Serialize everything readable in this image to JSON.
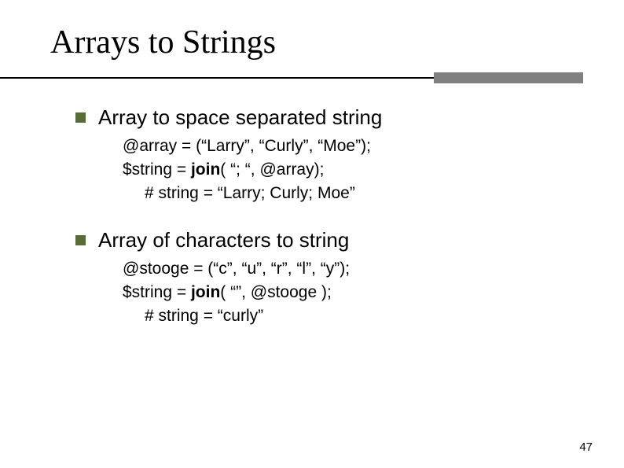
{
  "slide": {
    "title": "Arrays to Strings",
    "page_number": "47",
    "bullets": [
      {
        "heading": "Array to space separated string",
        "lines": [
          {
            "text": "@array = (“Larry”, “Curly”, “Moe”);",
            "bold_word": "",
            "indent": false
          },
          {
            "prefix": "$string = ",
            "bold_word": "join",
            "suffix": "( “; “, @array);",
            "indent": false
          },
          {
            "text": "# string  = “Larry; Curly; Moe”",
            "indent": true
          }
        ]
      },
      {
        "heading": "Array of characters to string",
        "lines": [
          {
            "text": "@stooge = (“c”, “u”, “r”, “l”, “y”);",
            "indent": false
          },
          {
            "prefix": "$string = ",
            "bold_word": "join",
            "suffix": "( “”, @stooge );",
            "indent": false
          },
          {
            "text": "# string = “curly”",
            "indent": true
          }
        ]
      }
    ]
  },
  "style": {
    "bullet_marker_color": "#5a6b3a",
    "hr_block_color": "#808080",
    "title_fontsize": 42,
    "bullet_fontsize": 26,
    "code_fontsize": 21,
    "pagenum_fontsize": 15
  }
}
